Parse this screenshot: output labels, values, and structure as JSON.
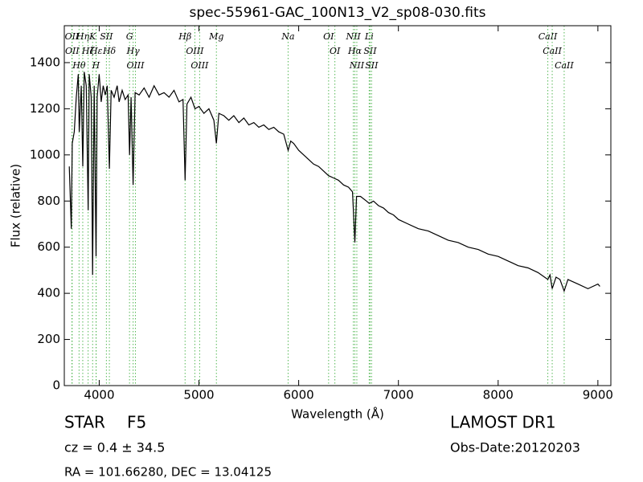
{
  "chart_data": {
    "type": "line",
    "title": "spec-55961-GAC_100N13_V2_sp08-030.fits",
    "x_label": "Wavelength (Å)",
    "y_label": "Flux (relative)",
    "xlim": [
      3650,
      9130
    ],
    "ylim": [
      0,
      1560
    ],
    "xticks": [
      4000,
      5000,
      6000,
      7000,
      8000,
      9000
    ],
    "yticks": [
      0,
      200,
      400,
      600,
      800,
      1000,
      1200,
      1400
    ],
    "x": [
      3700,
      3720,
      3730,
      3750,
      3770,
      3790,
      3800,
      3820,
      3835,
      3850,
      3870,
      3889,
      3900,
      3920,
      3934,
      3950,
      3968,
      3980,
      4000,
      4020,
      4040,
      4060,
      4080,
      4102,
      4120,
      4150,
      4180,
      4200,
      4230,
      4260,
      4290,
      4304,
      4320,
      4340,
      4360,
      4400,
      4450,
      4500,
      4550,
      4600,
      4650,
      4700,
      4750,
      4800,
      4840,
      4861,
      4880,
      4920,
      4960,
      5000,
      5050,
      5100,
      5150,
      5175,
      5200,
      5250,
      5300,
      5350,
      5400,
      5450,
      5500,
      5550,
      5600,
      5650,
      5700,
      5750,
      5800,
      5850,
      5894,
      5920,
      5950,
      6000,
      6050,
      6100,
      6150,
      6200,
      6250,
      6300,
      6350,
      6400,
      6450,
      6500,
      6540,
      6563,
      6580,
      6620,
      6680,
      6707,
      6750,
      6800,
      6850,
      6900,
      6950,
      7000,
      7100,
      7200,
      7300,
      7400,
      7500,
      7600,
      7700,
      7800,
      7900,
      8000,
      8100,
      8200,
      8300,
      8400,
      8498,
      8520,
      8542,
      8580,
      8620,
      8662,
      8700,
      8800,
      8900,
      9000,
      9020
    ],
    "series": [
      {
        "color": "#000000",
        "values": [
          950,
          680,
          1050,
          1100,
          1250,
          1350,
          1100,
          1300,
          950,
          1360,
          1300,
          760,
          1350,
          1250,
          480,
          1300,
          560,
          1250,
          1350,
          1230,
          1300,
          1260,
          1300,
          940,
          1280,
          1250,
          1300,
          1230,
          1280,
          1240,
          1260,
          1000,
          1250,
          870,
          1270,
          1260,
          1290,
          1250,
          1300,
          1260,
          1270,
          1250,
          1280,
          1230,
          1240,
          890,
          1220,
          1250,
          1200,
          1210,
          1180,
          1200,
          1150,
          1050,
          1180,
          1170,
          1150,
          1170,
          1140,
          1160,
          1130,
          1140,
          1120,
          1130,
          1110,
          1120,
          1100,
          1090,
          1020,
          1060,
          1050,
          1020,
          1000,
          980,
          960,
          950,
          930,
          910,
          900,
          890,
          870,
          860,
          840,
          620,
          820,
          820,
          800,
          790,
          800,
          780,
          770,
          750,
          740,
          720,
          700,
          680,
          670,
          650,
          630,
          620,
          600,
          590,
          570,
          560,
          540,
          520,
          510,
          490,
          460,
          480,
          420,
          470,
          460,
          410,
          460,
          440,
          420,
          440,
          430
        ]
      }
    ],
    "line_color": "#55b855",
    "lines": [
      {
        "wavelength": 3726,
        "label": "OII"
      },
      {
        "wavelength": 3729,
        "label": "OII"
      },
      {
        "wavelength": 3798,
        "label": "Hθ"
      },
      {
        "wavelength": 3835,
        "label": "Hη"
      },
      {
        "wavelength": 3889,
        "label": "Hζ"
      },
      {
        "wavelength": 3934,
        "label": "K"
      },
      {
        "wavelength": 3968,
        "label": "H"
      },
      {
        "wavelength": 3970,
        "label": "Hε"
      },
      {
        "wavelength": 4072,
        "label": "SII"
      },
      {
        "wavelength": 4102,
        "label": "Hδ"
      },
      {
        "wavelength": 4304,
        "label": "G"
      },
      {
        "wavelength": 4340,
        "label": "Hγ"
      },
      {
        "wavelength": 4363,
        "label": "OIII"
      },
      {
        "wavelength": 4861,
        "label": "Hβ"
      },
      {
        "wavelength": 4959,
        "label": "OIII"
      },
      {
        "wavelength": 5007,
        "label": "OIII"
      },
      {
        "wavelength": 5175,
        "label": "Mg"
      },
      {
        "wavelength": 5894,
        "label": "Na"
      },
      {
        "wavelength": 6300,
        "label": "OI"
      },
      {
        "wavelength": 6363,
        "label": "OI"
      },
      {
        "wavelength": 6548,
        "label": "NII"
      },
      {
        "wavelength": 6563,
        "label": "Hα"
      },
      {
        "wavelength": 6583,
        "label": "NII"
      },
      {
        "wavelength": 6707,
        "label": "Li"
      },
      {
        "wavelength": 6716,
        "label": "SII"
      },
      {
        "wavelength": 6731,
        "label": "SII"
      },
      {
        "wavelength": 8498,
        "label": "CaII"
      },
      {
        "wavelength": 8542,
        "label": "CaII"
      },
      {
        "wavelength": 8662,
        "label": "CaII"
      }
    ]
  },
  "footer": {
    "object": "STAR",
    "class": "F5",
    "cz": "cz = 0.4 ± 34.5",
    "survey": "LAMOST DR1",
    "obs_date": "Obs-Date:20120203",
    "coords": "RA = 101.66280, DEC = 13.04125"
  }
}
